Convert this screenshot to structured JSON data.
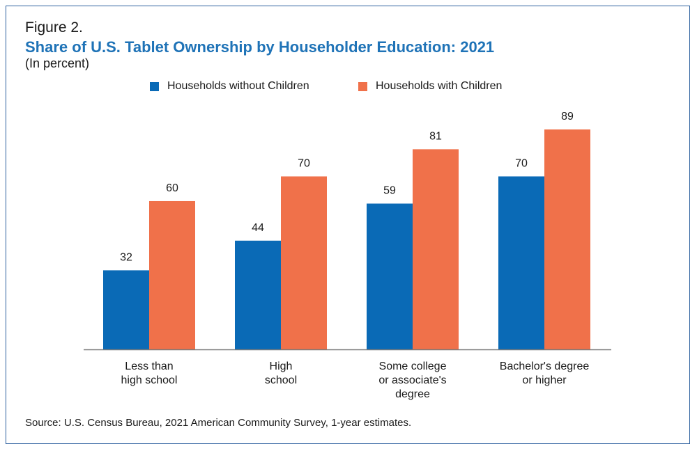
{
  "figure_label": "Figure 2.",
  "title": "Share of U.S. Tablet Ownership by Householder Education: 2021",
  "subtitle": "(In percent)",
  "source": "Source: U.S. Census Bureau, 2021 American Community Survey, 1-year estimates.",
  "colors": {
    "without_children": "#0a6ab6",
    "with_children": "#f0714a",
    "axis": "#7a7a7a",
    "frame": "#2b5f9e"
  },
  "chart_data": {
    "type": "bar",
    "categories": [
      [
        "Less than",
        "high school"
      ],
      [
        "High",
        "school"
      ],
      [
        "Some college",
        "or associate's",
        "degree"
      ],
      [
        "Bachelor's degree",
        "or higher"
      ]
    ],
    "series": [
      {
        "name": "Households without Children",
        "values": [
          32,
          44,
          59,
          70
        ]
      },
      {
        "name": "Households with Children",
        "values": [
          60,
          70,
          81,
          89
        ]
      }
    ],
    "ylim": [
      0,
      89
    ],
    "grid": false,
    "legend": "top-center"
  }
}
